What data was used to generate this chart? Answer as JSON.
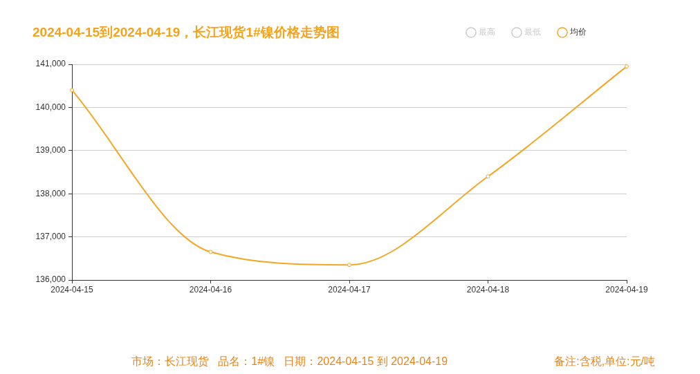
{
  "chart_data": {
    "type": "line",
    "title": "2024-04-15到2024-04-19，长江现货1#镍价格走势图",
    "categories": [
      "2024-04-15",
      "2024-04-16",
      "2024-04-17",
      "2024-04-18",
      "2024-04-19"
    ],
    "series": [
      {
        "name": "最高",
        "color": "#cccccc",
        "values": [
          null,
          null,
          null,
          null,
          null
        ]
      },
      {
        "name": "最低",
        "color": "#cccccc",
        "values": [
          null,
          null,
          null,
          null,
          null
        ]
      },
      {
        "name": "均价",
        "color": "#f5a623",
        "values": [
          140400,
          136650,
          136350,
          138400,
          140950
        ]
      }
    ],
    "ylim": [
      136000,
      141000
    ],
    "yticks": [
      {
        "value": 136000,
        "label": "136,000"
      },
      {
        "value": 137000,
        "label": "137,000"
      },
      {
        "value": 138000,
        "label": "138,000"
      },
      {
        "value": 139000,
        "label": "139,000"
      },
      {
        "value": 140000,
        "label": "140,000"
      },
      {
        "value": 141000,
        "label": "141,000"
      }
    ],
    "grid": "y",
    "legend": "top right",
    "marker": "circle",
    "annotations": [
      "市场：长江现货   品名：1#镍   日期：2024-04-15 到 2024-04-19",
      "备注:含税,单位:元/吨"
    ]
  }
}
